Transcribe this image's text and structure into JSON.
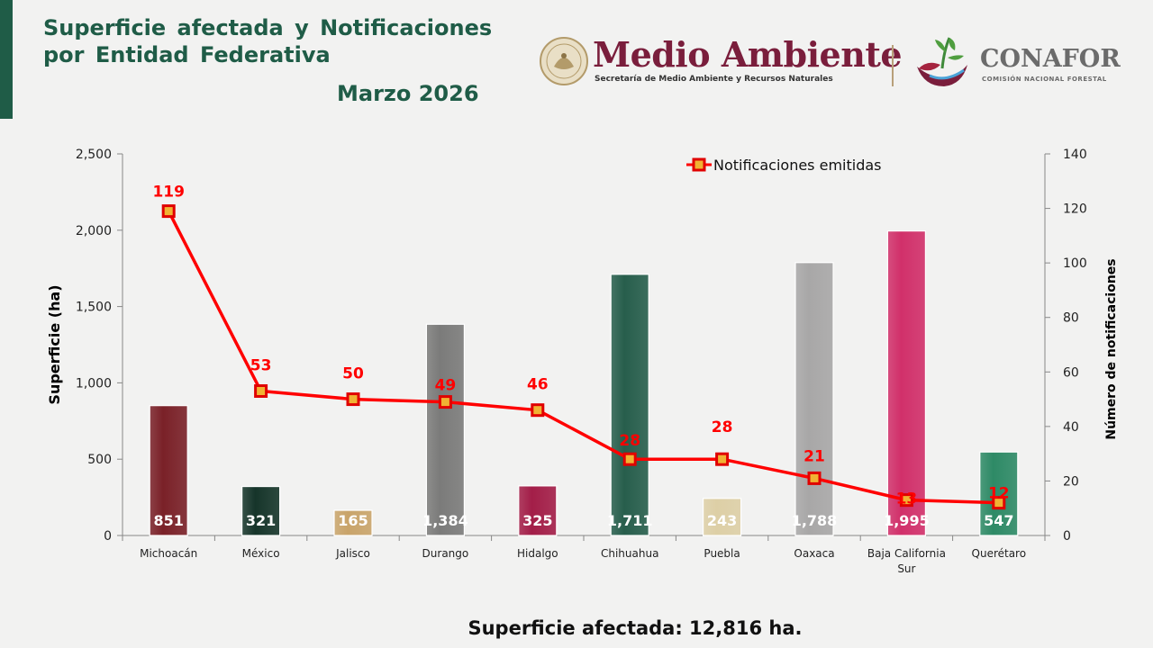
{
  "header": {
    "title": "Superficie  afectada  y  Notificaciones\npor Entidad Federativa",
    "subtitle": "Marzo 2026"
  },
  "logos": {
    "brand_1": "Medio Ambiente",
    "brand_1_sub": "Secretaría de Medio Ambiente y Recursos Naturales",
    "brand_2": "CONAFOR",
    "brand_2_sub": "COMISIÓN NACIONAL FORESTAL"
  },
  "footer": {
    "summary": "Superficie afectada: 12,816 ha."
  },
  "chart_data": {
    "type": "bar",
    "categories": [
      "Michoacán",
      "México",
      "Jalisco",
      "Durango",
      "Hidalgo",
      "Chihuahua",
      "Puebla",
      "Oaxaca",
      "Baja California Sur",
      "Querétaro"
    ],
    "category_labels": [
      [
        "Michoacán"
      ],
      [
        "México"
      ],
      [
        "Jalisco"
      ],
      [
        "Durango"
      ],
      [
        "Hidalgo"
      ],
      [
        "Chihuahua"
      ],
      [
        "Puebla"
      ],
      [
        "Oaxaca"
      ],
      [
        "Baja California",
        "Sur"
      ],
      [
        "Querétaro"
      ]
    ],
    "series": [
      {
        "type": "bar",
        "axis": "left",
        "values": [
          851,
          321,
          165,
          1384,
          325,
          1711,
          243,
          1788,
          1995,
          547
        ],
        "value_labels": [
          "851",
          "321",
          "165",
          "1,384",
          "325",
          "1,711",
          "243",
          "1,788",
          "1,995",
          "547"
        ],
        "colors": [
          "#7a2128",
          "#16352a",
          "#c9a46a",
          "#7b7b7a",
          "#a31e48",
          "#275e4c",
          "#ddcfa6",
          "#a8a7a7",
          "#d1306a",
          "#2e8a66"
        ]
      },
      {
        "type": "line",
        "axis": "right",
        "name": "Notificaciones emitidas",
        "values": [
          119,
          53,
          50,
          49,
          46,
          28,
          28,
          21,
          13,
          12
        ],
        "color": "#ff0000"
      }
    ],
    "ylabel": "Superficie (ha)",
    "y2label": "Número de notificaciones",
    "ylim": [
      0,
      2500
    ],
    "y2lim": [
      0,
      140
    ],
    "yticks": [
      0,
      500,
      1000,
      1500,
      2000,
      2500
    ],
    "yticks_labels": [
      "0",
      "500",
      "1,000",
      "1,500",
      "2,000",
      "2,500"
    ],
    "y2ticks": [
      0,
      20,
      40,
      60,
      80,
      100,
      120,
      140
    ],
    "grid": false,
    "legend": "top-right"
  }
}
